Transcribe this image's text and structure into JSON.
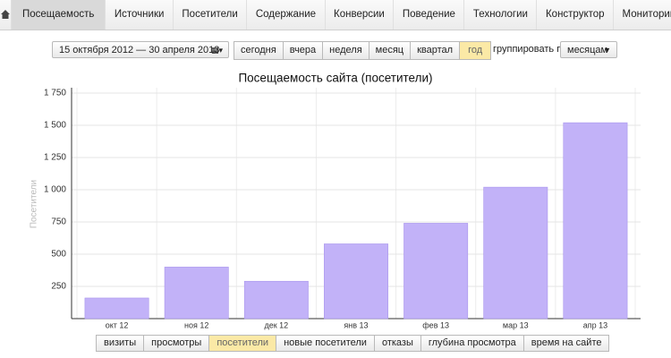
{
  "nav": {
    "tabs": [
      "Посещаемость",
      "Источники",
      "Посетители",
      "Содержание",
      "Конверсии",
      "Поведение",
      "Технологии",
      "Конструктор",
      "Мониторинг"
    ]
  },
  "toolbar": {
    "date_range": "15 октября 2012 — 30 апреля 2013",
    "periods": [
      "сегодня",
      "вчера",
      "неделя",
      "месяц",
      "квартал",
      "год"
    ],
    "group_label": "группировать по",
    "group_value": "месяцам"
  },
  "chart_data": {
    "type": "bar",
    "title": "Посещаемость сайта (посетители)",
    "y_label": "Посетители",
    "categories": [
      "окт 12",
      "ноя 12",
      "дек 12",
      "янв 13",
      "фев 13",
      "мар 13",
      "апр 13"
    ],
    "values": [
      160,
      400,
      290,
      580,
      740,
      1020,
      1520
    ],
    "color": "#c2b2f8",
    "ylim": [
      0,
      1750
    ],
    "yticks": [
      250,
      500,
      750,
      {
        "value": 1000,
        "label": "1 000"
      },
      {
        "value": 1250,
        "label": "1 250"
      },
      {
        "value": 1500,
        "label": "1 500"
      },
      {
        "value": 1750,
        "label": "1 750"
      }
    ],
    "grid": true
  },
  "metrics": {
    "tabs": [
      "визиты",
      "просмотры",
      "посетители",
      "новые посетители",
      "отказы",
      "глубина просмотра",
      "время на сайте"
    ]
  }
}
